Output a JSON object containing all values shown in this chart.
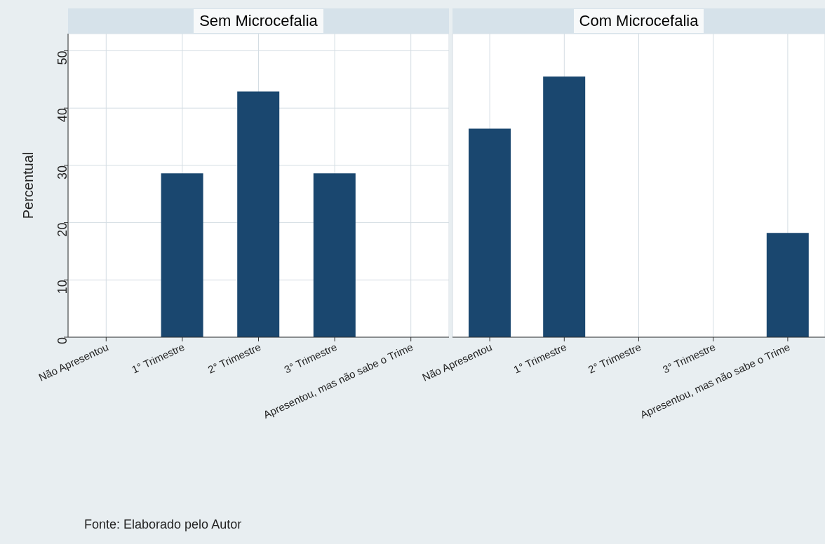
{
  "chart_data": [
    {
      "type": "bar",
      "title": "Sem Microcefalia",
      "ylabel": "Percentual",
      "categories": [
        "Não Apresentou",
        "1° Trimestre",
        "2° Trimestre",
        "3° Trimestre",
        "Apresentou, mas não sabe o Trime"
      ],
      "values": [
        0,
        28.6,
        42.9,
        28.6,
        0
      ],
      "color": "#1a476f",
      "ylim": [
        0,
        53
      ],
      "yticks": [
        0,
        10,
        20,
        30,
        40,
        50
      ],
      "grid": true,
      "annotations": [
        "Fonte: Elaborado pelo Autor"
      ]
    },
    {
      "type": "bar",
      "title": "Com Microcefalia",
      "categories": [
        "Não Apresentou",
        "1° Trimestre",
        "2° Trimestre",
        "3° Trimestre",
        "Apresentou, mas não sabe o Trime"
      ],
      "values": [
        36.4,
        45.5,
        0,
        0,
        18.2
      ],
      "color": "#1a476f",
      "ylim": [
        0,
        53
      ],
      "yticks": [
        0,
        10,
        20,
        30,
        40,
        50
      ],
      "grid": true,
      "tick_labels": "x"
    }
  ]
}
